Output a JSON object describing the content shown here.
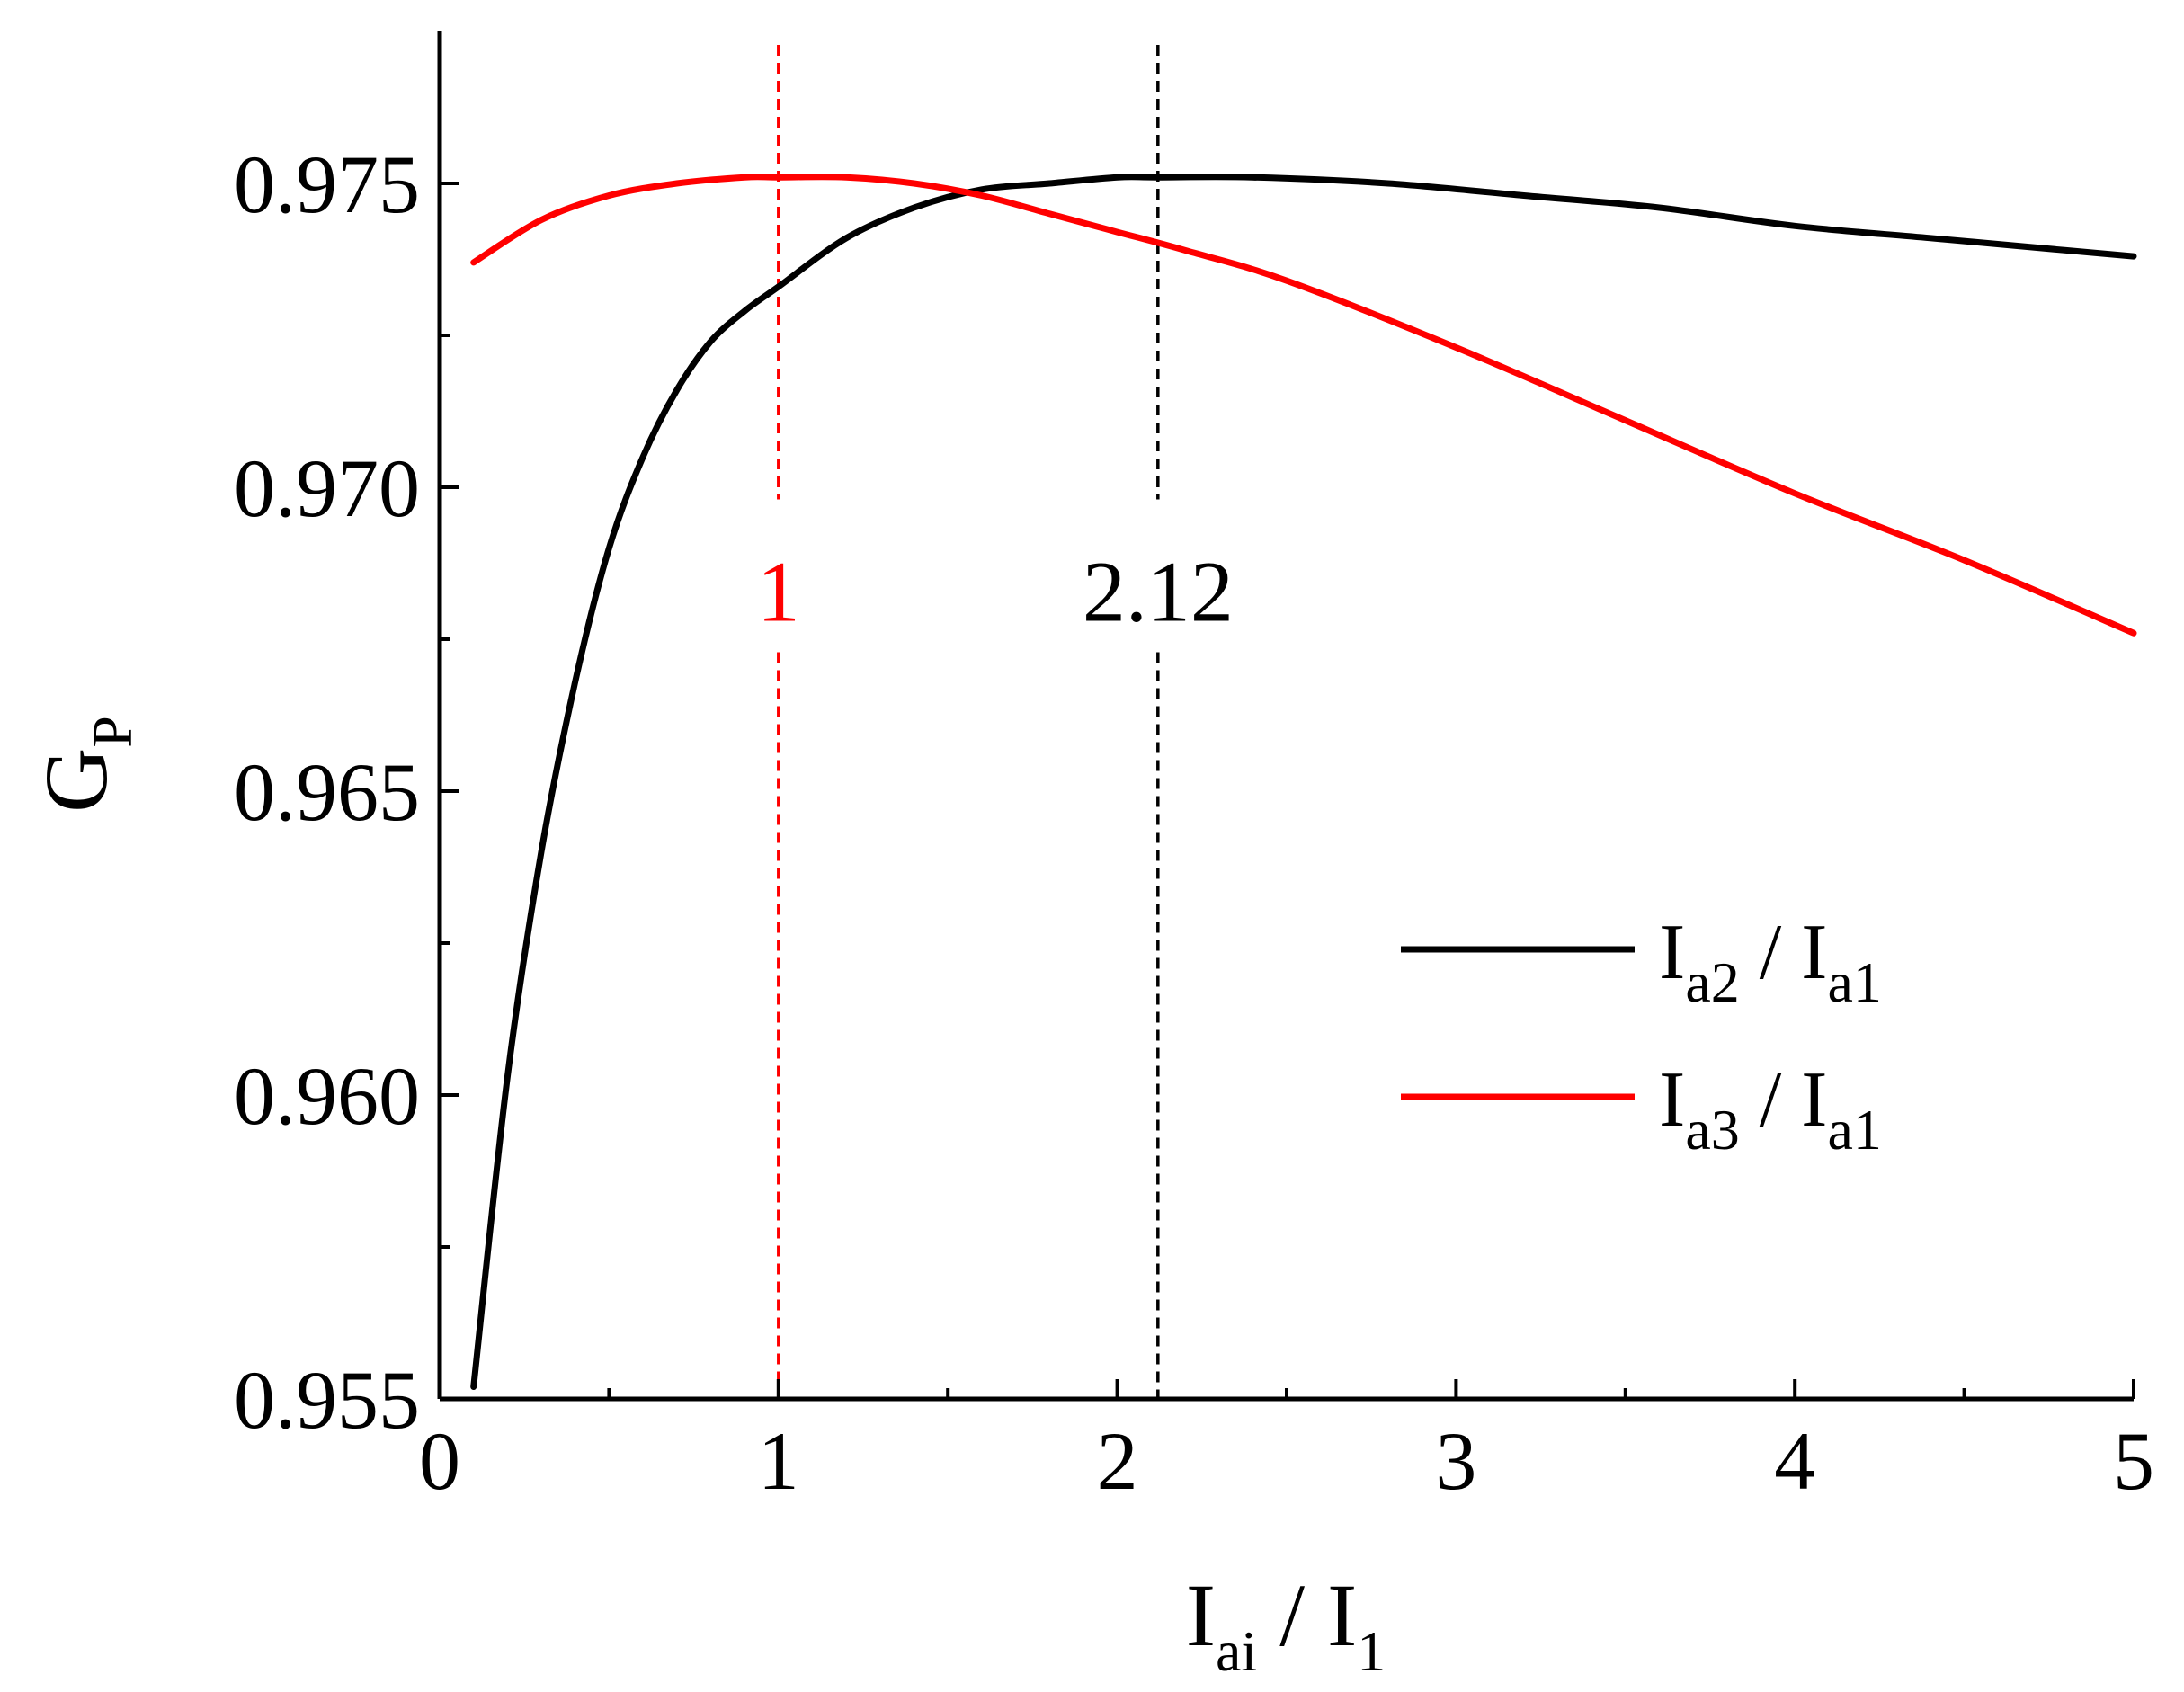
{
  "chart_data": {
    "type": "line",
    "title": "",
    "xlabel": {
      "main": "I",
      "sub": "ai",
      "sep": " / I",
      "sub2": "1"
    },
    "ylabel": {
      "main": "G",
      "sub": "P"
    },
    "xlim": [
      0,
      5
    ],
    "ylim": [
      0.955,
      0.9775
    ],
    "xticks": [
      0,
      1,
      2,
      3,
      4,
      5
    ],
    "xtick_labels": [
      "0",
      "1",
      "2",
      "3",
      "4",
      "5"
    ],
    "yticks": [
      0.955,
      0.96,
      0.965,
      0.97,
      0.975
    ],
    "ytick_labels": [
      "0.955",
      "0.960",
      "0.965",
      "0.970",
      "0.975"
    ],
    "grid": false,
    "legend_position": "right-middle",
    "series": [
      {
        "legend": {
          "a": "I",
          "a_sub": "a2",
          "sep": " / I",
          "b_sub": "a1"
        },
        "color": "#000000",
        "x": [
          0.1,
          0.2,
          0.3,
          0.4,
          0.5,
          0.6,
          0.7,
          0.8,
          0.9,
          1.0,
          1.2,
          1.4,
          1.6,
          1.8,
          2.0,
          2.12,
          2.4,
          2.8,
          3.2,
          3.6,
          4.0,
          4.4,
          4.8,
          5.0
        ],
        "y": [
          0.9552,
          0.9603,
          0.964,
          0.9668,
          0.969,
          0.9705,
          0.9716,
          0.9724,
          0.9729,
          0.9733,
          0.9741,
          0.9746,
          0.9749,
          0.975,
          0.9751,
          0.9751,
          0.9751,
          0.975,
          0.9748,
          0.9746,
          0.9743,
          0.9741,
          0.9739,
          0.9738
        ]
      },
      {
        "legend": {
          "a": "I",
          "a_sub": "a3",
          "sep": " / I",
          "b_sub": "a1"
        },
        "color": "#ff0000",
        "x": [
          0.1,
          0.3,
          0.5,
          0.7,
          0.9,
          1.0,
          1.2,
          1.4,
          1.6,
          1.8,
          2.0,
          2.2,
          2.5,
          3.0,
          3.5,
          4.0,
          4.5,
          5.0
        ],
        "y": [
          0.9737,
          0.9744,
          0.9748,
          0.975,
          0.9751,
          0.9751,
          0.9751,
          0.975,
          0.9748,
          0.9745,
          0.9742,
          0.9739,
          0.9734,
          0.9723,
          0.9711,
          0.9699,
          0.9688,
          0.9676
        ]
      }
    ],
    "annotations": [
      {
        "x": 1,
        "label": "1",
        "color": "#ff0000",
        "label_y": 0.9681
      },
      {
        "x": 2.12,
        "label": "2.12",
        "color": "#000000",
        "label_y": 0.9681
      }
    ]
  }
}
